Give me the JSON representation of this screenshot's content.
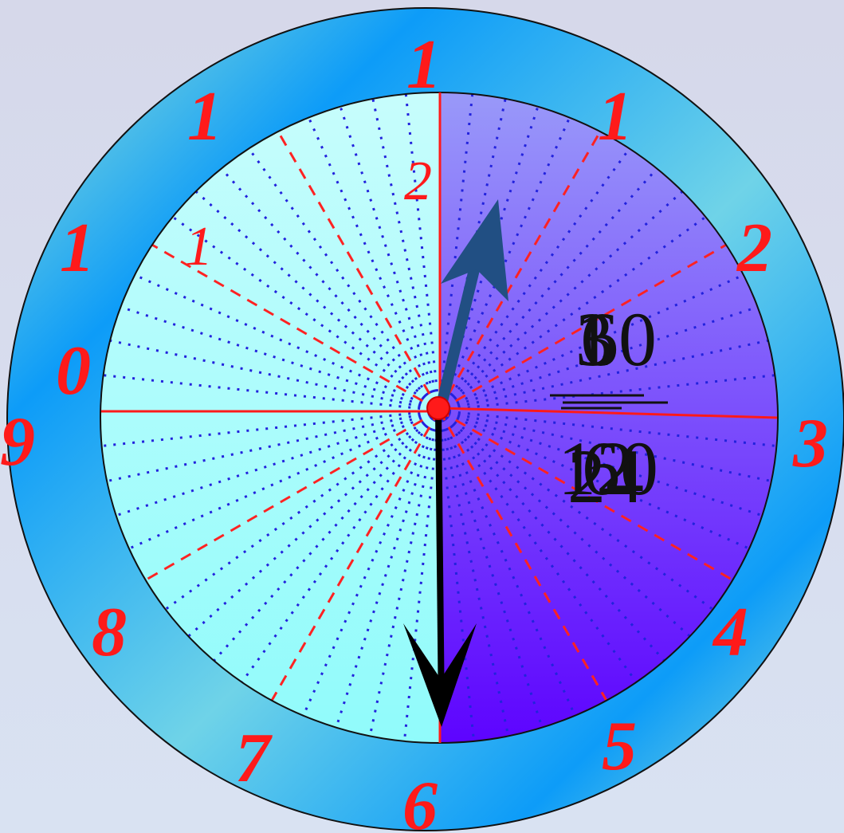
{
  "clock": {
    "outer_numbers": [
      "1",
      "1",
      "2",
      "3",
      "4",
      "5",
      "6",
      "7",
      "8",
      "9",
      "0",
      "1",
      "1"
    ],
    "inner_numbers": [
      "2",
      "1"
    ],
    "fraction": {
      "numerator_overlap": [
        "3",
        "60",
        "1"
      ],
      "denominator_overlap": [
        "12",
        "60",
        "24"
      ]
    },
    "hands": {
      "hour_hand_direction_deg": 18,
      "minute_hand_direction_deg": 180
    },
    "colors": {
      "ring_light": "#8fe3d8",
      "ring_blue": "#0d9cf8",
      "left_face": "#a6fdfc",
      "right_face_top": "#8d8df9",
      "right_face_bottom": "#6200ff",
      "numbers": "#ff1a1a",
      "hour_hand": "#214f83",
      "minute_hand": "#000000",
      "dots": "#2222dd",
      "dash_lines": "#ff2222"
    }
  }
}
